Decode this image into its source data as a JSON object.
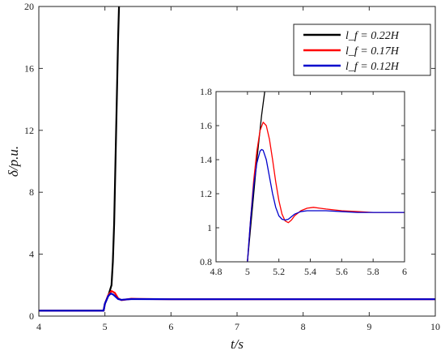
{
  "chart_data": [
    {
      "type": "line",
      "xlabel": "t/s",
      "ylabel": "δ/p.u.",
      "xlim": [
        4,
        10
      ],
      "ylim": [
        0,
        20
      ],
      "xticks": [
        "4",
        "5",
        "6",
        "7",
        "8",
        "9",
        "10"
      ],
      "yticks": [
        "0",
        "4",
        "8",
        "12",
        "16",
        "20"
      ],
      "grid": false,
      "legend_position": "top-right",
      "series": [
        {
          "name": "l_f = 0.22H",
          "color": "#000000",
          "x": [
            4,
            4.98,
            5.0,
            5.05,
            5.1,
            5.12,
            5.14,
            5.16,
            5.18,
            5.2,
            5.22
          ],
          "y": [
            0.35,
            0.35,
            0.8,
            1.3,
            2.0,
            3.5,
            6.0,
            10.0,
            14.0,
            18.0,
            21.0
          ]
        },
        {
          "name": "l_f = 0.17H",
          "color": "#ff0000",
          "x": [
            4,
            4.98,
            5.0,
            5.05,
            5.1,
            5.15,
            5.2,
            5.25,
            5.3,
            5.4,
            5.5,
            6.0,
            10.0
          ],
          "y": [
            0.35,
            0.35,
            0.8,
            1.35,
            1.62,
            1.5,
            1.15,
            1.03,
            1.06,
            1.12,
            1.11,
            1.09,
            1.09
          ]
        },
        {
          "name": "l_f = 0.12H",
          "color": "#0000cc",
          "x": [
            4,
            4.98,
            5.0,
            5.05,
            5.09,
            5.13,
            5.2,
            5.25,
            5.3,
            5.4,
            5.5,
            6.0,
            10.0
          ],
          "y": [
            0.35,
            0.35,
            0.8,
            1.3,
            1.46,
            1.38,
            1.1,
            1.05,
            1.07,
            1.1,
            1.1,
            1.09,
            1.09
          ]
        }
      ]
    },
    {
      "type": "line",
      "xlim": [
        4.8,
        6
      ],
      "ylim": [
        0.8,
        1.8
      ],
      "xticks": [
        "4.8",
        "5",
        "5.2",
        "5.4",
        "5.6",
        "5.8",
        "6"
      ],
      "yticks": [
        "0.8",
        "1",
        "1.2",
        "1.4",
        "1.6",
        "1.8"
      ],
      "series": [
        {
          "color": "#000000",
          "x": [
            5.0,
            5.03,
            5.06,
            5.09,
            5.11
          ],
          "y": [
            0.8,
            1.1,
            1.4,
            1.66,
            1.8
          ]
        },
        {
          "color": "#ff0000",
          "x": [
            5.0,
            5.02,
            5.04,
            5.06,
            5.08,
            5.1,
            5.12,
            5.14,
            5.16,
            5.18,
            5.2,
            5.22,
            5.24,
            5.26,
            5.28,
            5.3,
            5.34,
            5.38,
            5.42,
            5.46,
            5.5,
            5.6,
            5.7,
            5.8,
            5.9,
            6.0
          ],
          "y": [
            0.8,
            1.05,
            1.28,
            1.45,
            1.57,
            1.62,
            1.6,
            1.52,
            1.4,
            1.27,
            1.16,
            1.08,
            1.04,
            1.03,
            1.045,
            1.07,
            1.1,
            1.115,
            1.12,
            1.115,
            1.11,
            1.1,
            1.095,
            1.09,
            1.09,
            1.09
          ]
        },
        {
          "color": "#0000cc",
          "x": [
            5.0,
            5.02,
            5.04,
            5.06,
            5.08,
            5.09,
            5.1,
            5.12,
            5.14,
            5.16,
            5.18,
            5.2,
            5.22,
            5.24,
            5.26,
            5.28,
            5.3,
            5.34,
            5.38,
            5.42,
            5.46,
            5.5,
            5.6,
            5.7,
            5.8,
            5.9,
            6.0
          ],
          "y": [
            0.8,
            1.05,
            1.25,
            1.38,
            1.45,
            1.46,
            1.455,
            1.4,
            1.3,
            1.2,
            1.12,
            1.07,
            1.05,
            1.045,
            1.05,
            1.065,
            1.08,
            1.095,
            1.1,
            1.1,
            1.1,
            1.1,
            1.095,
            1.09,
            1.09,
            1.09,
            1.09
          ]
        }
      ]
    }
  ]
}
